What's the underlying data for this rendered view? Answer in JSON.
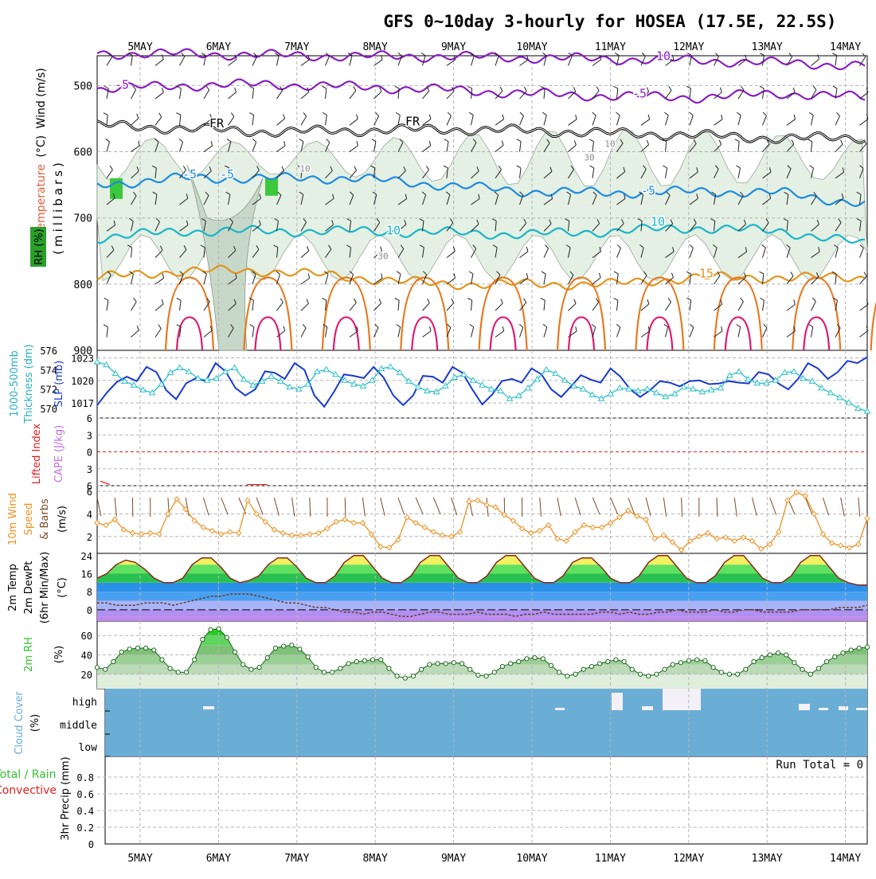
{
  "title": "GFS 0~10day 3-hourly for HOSEA (17.5E, 22.5S)",
  "date_labels": [
    "5MAY",
    "6MAY",
    "7MAY",
    "8MAY",
    "9MAY",
    "10MAY",
    "11MAY",
    "12MAY",
    "13MAY",
    "14MAY"
  ],
  "colors": {
    "grid": "#b4b4b4",
    "rh_fill": "#e3f0e3",
    "rh_fill_dark": "#c8d8c8",
    "temp_purple": "#8a1fc0",
    "temp_blue": "#1e8be0",
    "temp_cyan": "#1ab5c8",
    "temp_orange": "#e0961e",
    "temp_deep_orange": "#e8781e",
    "temp_magenta": "#e0186e",
    "slp_line": "#1a3ad0",
    "thickness_line": "#2ac0c8",
    "wind10_line": "#f09020",
    "barb": "#7a4a2a",
    "rh_green": "#2aa02a",
    "cloud_blue": "#6aaed6",
    "cloud_gap": "#f4f0f8",
    "label_red": "#e02020",
    "label_green": "#30c030"
  },
  "panels": {
    "profile": {
      "label_wind": "Wind (m/s)",
      "label_temperature": "Temperature",
      "label_temp_unit": "(°C)",
      "label_rh": "RH (%)",
      "label_pressure": "(millibars)",
      "contour_labels": [
        "-5",
        "-5",
        "10",
        "-5",
        "FR",
        "FR",
        "-5",
        "-5",
        "10",
        "10",
        "15",
        "10",
        "30",
        "30",
        "10"
      ]
    },
    "slp": {
      "label_thickness": "1000-500mb",
      "label_thickness2": "Thickness (dm)",
      "label_slp": "SLP (mb)"
    },
    "cape": {
      "label_li": "Lifted Index",
      "label_cape": "CAPE (J/kg)"
    },
    "wind10": {
      "label_a": "10m Wind",
      "label_b": "Speed",
      "label_c": "& Barbs",
      "label_unit": "(m/s)"
    },
    "temp2m": {
      "label_a": "2m Temp",
      "label_b": "2m DewPt",
      "label_c": "(6hr Min/Max)",
      "label_unit": "(°C)"
    },
    "rh2m": {
      "label_a": "2m RH",
      "label_unit": "(%)"
    },
    "cloud": {
      "label_a": "Cloud Cover",
      "label_unit": "(%)",
      "levels": [
        "high",
        "middle",
        "low"
      ]
    },
    "precip": {
      "label_a": "Total / Rain",
      "label_b": "Convective",
      "label_c": "3hr Precip (mm)",
      "run_total": "Run Total = 0"
    }
  },
  "chart_data": [
    {
      "type": "line",
      "panel": "pressure-profile",
      "x": [
        "5MAY",
        "6MAY",
        "7MAY",
        "8MAY",
        "9MAY",
        "10MAY",
        "11MAY",
        "12MAY",
        "13MAY",
        "14MAY"
      ],
      "ylabel": "(millibars)",
      "yticks": [
        500,
        600,
        700,
        800,
        900
      ],
      "ylim": [
        900,
        455
      ],
      "series": [
        {
          "name": "-10",
          "values": [
            452,
            452,
            454,
            456,
            456,
            458,
            460,
            462,
            466,
            470
          ]
        },
        {
          "name": "-5",
          "values": [
            505,
            500,
            498,
            502,
            506,
            512,
            516,
            518,
            512,
            518
          ]
        },
        {
          "name": "FR",
          "values": [
            560,
            565,
            570,
            568,
            566,
            568,
            572,
            575,
            580,
            578
          ]
        },
        {
          "name": "-5",
          "values": [
            650,
            640,
            640,
            640,
            650,
            660,
            662,
            660,
            662,
            680
          ]
        },
        {
          "name": "10",
          "values": [
            730,
            720,
            720,
            720,
            722,
            725,
            720,
            715,
            720,
            740
          ]
        },
        {
          "name": "15",
          "values": [
            790,
            780,
            780,
            790,
            800,
            800,
            800,
            790,
            790,
            790
          ]
        }
      ]
    },
    {
      "type": "line",
      "panel": "slp-thickness",
      "ylim_slp": [
        1015,
        1024
      ],
      "yticks_slp": [
        1017,
        1020,
        1023
      ],
      "ylim_thickness": [
        569,
        576
      ],
      "yticks_thickness": [
        570,
        572,
        574,
        576
      ],
      "series": [
        {
          "name": "SLP (mb)",
          "values": [
            1016.7,
            1018.4,
            1019.8,
            1020.5,
            1019.9,
            1021.8,
            1021.1,
            1018.7,
            1017.5,
            1019.6,
            1020.3,
            1019.9,
            1022.3,
            1021.2,
            1019.0,
            1018.0,
            1018.8,
            1021.2,
            1021.0,
            1020.2,
            1022.3,
            1021.4,
            1018.0,
            1016.5,
            1018.5,
            1020.8,
            1020.6,
            1020.3,
            1021.8,
            1020.4,
            1018.0,
            1016.7,
            1018.0,
            1020.6,
            1020.5,
            1019.7,
            1021.8,
            1021.0,
            1018.8,
            1016.8,
            1018.1,
            1019.9,
            1020.2,
            1019.7,
            1021.6,
            1020.8,
            1018.8,
            1017.8,
            1019.2,
            1020.7,
            1020.1,
            1019.7,
            1021.6,
            1020.5,
            1018.8,
            1017.8,
            1018.7,
            1019.9,
            1019.7,
            1019.2,
            1019.9,
            1020.0,
            1019.5,
            1019.6,
            1019.9,
            1019.7,
            1019.6,
            1021.1,
            1020.8,
            1019.6,
            1018.8,
            1020.2,
            1022.3,
            1021.6,
            1020.2,
            1021.1,
            1022.6,
            1022.3,
            1023.1
          ]
        },
        {
          "name": "1000-500mb Thickness (dm)",
          "values": [
            574.8,
            574.5,
            573.6,
            572.8,
            572.4,
            571.9,
            571.6,
            572.5,
            573.7,
            574.2,
            573.8,
            573.1,
            572.9,
            573.1,
            573.8,
            574.2,
            573.0,
            572.4,
            572.8,
            573.3,
            572.8,
            572.2,
            572.0,
            572.5,
            573.8,
            574.0,
            573.5,
            572.9,
            572.5,
            572.3,
            572.9,
            574.1,
            574.3,
            573.7,
            572.8,
            572.2,
            571.8,
            571.7,
            572.3,
            573.2,
            573.5,
            572.9,
            572.4,
            572.0,
            571.8,
            571.0,
            571.3,
            572.1,
            573.0,
            574.0,
            573.6,
            572.9,
            572.3,
            572.0,
            571.4,
            571.0,
            571.5,
            572.1,
            572.0,
            571.8,
            572.0,
            571.6,
            571.2,
            571.5,
            572.2,
            572.0,
            571.7,
            571.9,
            572.1,
            573.4,
            573.8,
            573.0,
            572.6,
            572.6,
            572.9,
            573.7,
            573.8,
            573.1,
            572.8,
            572.1,
            571.6,
            571.1,
            570.6,
            570.0,
            569.7
          ]
        }
      ]
    },
    {
      "type": "line",
      "panel": "cape-lifted-index",
      "ylim": [
        6,
        -6
      ],
      "yticks": [
        -6,
        -3,
        0,
        3,
        6
      ],
      "series": [
        {
          "name": "Lifted Index",
          "values": [
            5.2,
            5.8
          ]
        }
      ]
    },
    {
      "type": "line",
      "panel": "wind10m",
      "ylabel": "(m/s)",
      "ylim": [
        0.5,
        6.5
      ],
      "yticks": [
        2,
        4,
        6
      ],
      "series": [
        {
          "name": "10m Wind Speed",
          "values": [
            3.2,
            3.0,
            3.5,
            2.6,
            2.3,
            2.2,
            2.3,
            2.2,
            4.0,
            5.3,
            4.4,
            3.4,
            2.8,
            2.5,
            2.2,
            2.4,
            2.3,
            5.2,
            4.0,
            3.3,
            2.6,
            2.3,
            2.1,
            2.1,
            2.2,
            2.3,
            2.7,
            3.3,
            3.5,
            3.2,
            3.2,
            2.2,
            1.1,
            1.0,
            1.7,
            3.7,
            3.2,
            2.8,
            2.4,
            2.1,
            2.0,
            2.4,
            5.1,
            5.2,
            4.8,
            4.6,
            3.9,
            3.4,
            2.7,
            2.3,
            2.5,
            3.0,
            1.8,
            1.6,
            2.4,
            3.0,
            2.8,
            2.8,
            3.2,
            3.7,
            4.3,
            3.8,
            3.5,
            1.8,
            2.1,
            1.5,
            0.8,
            1.6,
            2.0,
            2.3,
            1.8,
            1.9,
            1.6,
            1.9,
            1.6,
            0.9,
            1.3,
            2.4,
            5.2,
            5.9,
            5.6,
            4.0,
            2.2,
            1.4,
            1.2,
            1.0,
            1.3,
            3.6
          ]
        }
      ]
    },
    {
      "type": "area",
      "panel": "temp-dewpoint-2m",
      "ylabel": "(°C)",
      "ylim": [
        -5,
        25
      ],
      "yticks": [
        0,
        8,
        16,
        24
      ],
      "series": [
        {
          "name": "2m Temp",
          "values": [
            14,
            16,
            20,
            22,
            21,
            18,
            14,
            12,
            12,
            14,
            20,
            23,
            23,
            19,
            14,
            12,
            13,
            15,
            20,
            23,
            23,
            19,
            14,
            12,
            12,
            15,
            21,
            24,
            24,
            19,
            14,
            12,
            12,
            15,
            21,
            24,
            24,
            19,
            14,
            12,
            12,
            15,
            21,
            24,
            24,
            19,
            14,
            12,
            12,
            15,
            21,
            23,
            23,
            19,
            14,
            12,
            12,
            15,
            21,
            24,
            24,
            19,
            14,
            12,
            12,
            15,
            21,
            24,
            24,
            19,
            14,
            12,
            12,
            15,
            21,
            24,
            24,
            19,
            14,
            12,
            11,
            11
          ]
        },
        {
          "name": "2m DewPt",
          "values": [
            3,
            3,
            2,
            2,
            2,
            3,
            3,
            3,
            2,
            3,
            4,
            5,
            6,
            6,
            7,
            7,
            7,
            6,
            5,
            4,
            3,
            3,
            2,
            1,
            1,
            0,
            -1,
            -1,
            -2,
            -1,
            -1,
            -2,
            -3,
            -3,
            -2,
            -1,
            -1,
            -2,
            -2,
            -2,
            -1,
            -2,
            -2,
            -2,
            -3,
            -2,
            -2,
            -1,
            -2,
            -2,
            -2,
            -2,
            -2,
            -1,
            -1,
            -2,
            -1,
            -2,
            -2,
            -1,
            -1,
            0,
            -1,
            -1,
            -1,
            0,
            -1,
            -1,
            0,
            0,
            -1,
            -1,
            -1,
            -1,
            0,
            0,
            0,
            0,
            1,
            1,
            1,
            2
          ]
        }
      ]
    },
    {
      "type": "area",
      "panel": "rh-2m",
      "ylabel": "(%)",
      "ylim": [
        5,
        75
      ],
      "yticks": [
        20,
        40,
        60
      ],
      "series": [
        {
          "name": "2m RH",
          "values": [
            27,
            25,
            33,
            43,
            46,
            47,
            47,
            45,
            35,
            26,
            22,
            22,
            35,
            56,
            66,
            67,
            58,
            43,
            30,
            25,
            27,
            37,
            47,
            49,
            50,
            46,
            38,
            27,
            22,
            22,
            26,
            31,
            33,
            34,
            35,
            35,
            26,
            18,
            16,
            18,
            25,
            30,
            31,
            31,
            32,
            31,
            25,
            19,
            18,
            22,
            28,
            31,
            33,
            36,
            37,
            36,
            29,
            22,
            18,
            20,
            25,
            28,
            31,
            33,
            35,
            33,
            25,
            20,
            18,
            20,
            25,
            30,
            32,
            34,
            35,
            34,
            27,
            22,
            20,
            20,
            25,
            33,
            37,
            40,
            42,
            40,
            32,
            25,
            20,
            26,
            33,
            38,
            42,
            45,
            47,
            48
          ]
        }
      ]
    },
    {
      "type": "bar",
      "panel": "cloud-cover",
      "categories": [
        "high",
        "middle",
        "low"
      ],
      "values": [
        100,
        100,
        100
      ]
    },
    {
      "type": "bar",
      "panel": "precip-3hr",
      "ylabel": "3hr Precip (mm)",
      "ylim": [
        0,
        1
      ],
      "yticks": [
        0,
        0.2,
        0.4,
        0.6,
        0.8
      ],
      "values": []
    }
  ]
}
